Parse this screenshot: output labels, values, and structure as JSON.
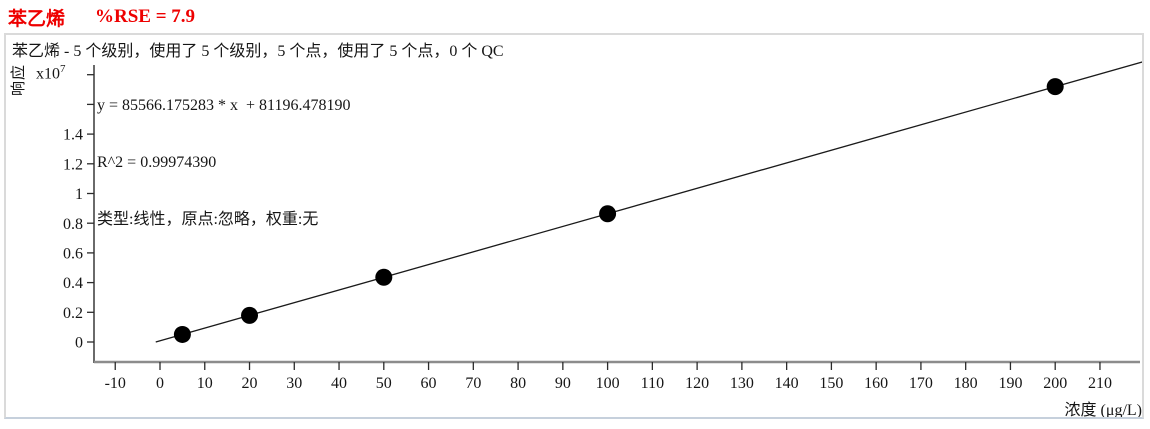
{
  "title": {
    "compound": "苯乙烯",
    "rse": "%RSE = 7.9"
  },
  "subtitle": "苯乙烯 - 5 个级别，使用了 5 个级别，5 个点，使用了 5 个点，0 个 QC",
  "equation": {
    "line1": "y = 85566.175283 * x  + 81196.478190",
    "line2": "R^2 = 0.99974390",
    "line3": "类型:线性，原点:忽略，权重:无"
  },
  "scale_label": {
    "base": "x10",
    "exp": "7"
  },
  "colors": {
    "title_red": "#ee0000",
    "text": "#161616",
    "axis_line": "#2b2b2b",
    "baseline_gray": "#8c8c8c",
    "point_fill": "#000000",
    "fit_line": "#1a1a1a",
    "box_border": "#dadada"
  },
  "chart_data": {
    "type": "scatter",
    "title": "苯乙烯 %RSE = 7.9",
    "xlabel": "浓度 (μg/L)",
    "ylabel": "响应",
    "y_scale": "x10^7",
    "x": [
      5,
      20,
      50,
      100,
      200
    ],
    "y": [
      509027,
      1792520,
      4359505,
      8637814,
      17194431
    ],
    "xticks": [
      -10,
      0,
      10,
      20,
      30,
      40,
      50,
      60,
      70,
      80,
      90,
      100,
      110,
      120,
      130,
      140,
      150,
      160,
      170,
      180,
      190,
      200,
      210
    ],
    "yticks_e7": [
      0,
      0.2,
      0.4,
      0.6,
      0.8,
      1,
      1.2,
      1.4
    ],
    "yticks_unlabeled_e7": [
      1.6,
      1.8
    ],
    "xlim": [
      -14.7,
      219.6
    ],
    "ylim_e7": [
      0,
      1.87
    ],
    "grid": false,
    "legend": "none",
    "fit": {
      "type": "线性",
      "origin": "忽略",
      "weight": "无",
      "slope": 85566.175283,
      "intercept": 81196.47819,
      "r2": 0.9997439
    },
    "marker": {
      "shape": "circle",
      "color": "#000000",
      "radius_px": 8.5
    },
    "levels": 5,
    "levels_used": 5,
    "points": 5,
    "points_used": 5,
    "qc_count": 0
  }
}
